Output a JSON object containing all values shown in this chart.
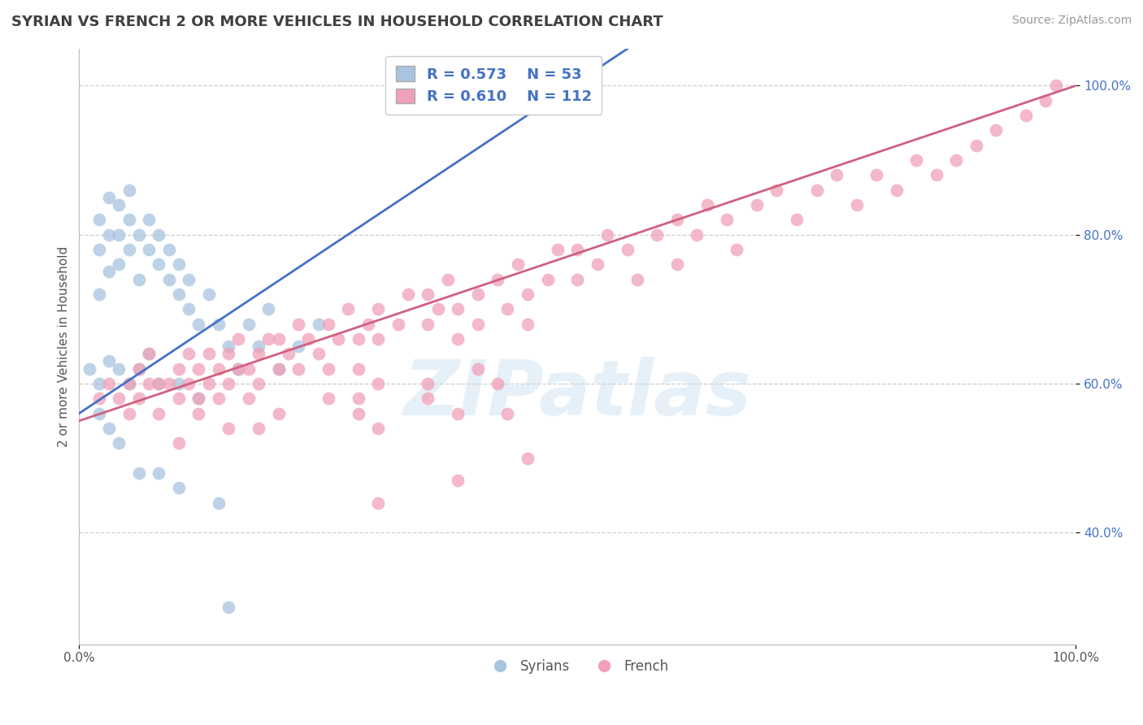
{
  "title": "SYRIAN VS FRENCH 2 OR MORE VEHICLES IN HOUSEHOLD CORRELATION CHART",
  "source": "Source: ZipAtlas.com",
  "ylabel": "2 or more Vehicles in Household",
  "xlim": [
    0.0,
    1.0
  ],
  "ylim": [
    0.25,
    1.05
  ],
  "xtick_positions": [
    0.0,
    1.0
  ],
  "xtick_labels": [
    "0.0%",
    "100.0%"
  ],
  "ytick_positions": [
    0.4,
    0.6,
    0.8,
    1.0
  ],
  "ytick_labels": [
    "40.0%",
    "60.0%",
    "80.0%",
    "100.0%"
  ],
  "grid_color": "#cccccc",
  "background_color": "#ffffff",
  "watermark": "ZIPatlas",
  "legend_R_syrian": "0.573",
  "legend_N_syrian": "53",
  "legend_R_french": "0.610",
  "legend_N_french": "112",
  "syrian_color": "#a8c4e0",
  "french_color": "#f0a0b8",
  "syrian_line_color": "#4472c4",
  "french_line_color": "#d06080",
  "title_color": "#404040",
  "legend_text_color": "#4472c4",
  "syrian_scatter": [
    [
      0.01,
      0.62
    ],
    [
      0.02,
      0.72
    ],
    [
      0.02,
      0.78
    ],
    [
      0.02,
      0.82
    ],
    [
      0.03,
      0.75
    ],
    [
      0.03,
      0.8
    ],
    [
      0.03,
      0.85
    ],
    [
      0.04,
      0.76
    ],
    [
      0.04,
      0.8
    ],
    [
      0.04,
      0.84
    ],
    [
      0.05,
      0.78
    ],
    [
      0.05,
      0.82
    ],
    [
      0.05,
      0.86
    ],
    [
      0.06,
      0.74
    ],
    [
      0.06,
      0.8
    ],
    [
      0.07,
      0.78
    ],
    [
      0.07,
      0.82
    ],
    [
      0.08,
      0.76
    ],
    [
      0.08,
      0.8
    ],
    [
      0.09,
      0.74
    ],
    [
      0.09,
      0.78
    ],
    [
      0.1,
      0.72
    ],
    [
      0.1,
      0.76
    ],
    [
      0.11,
      0.7
    ],
    [
      0.11,
      0.74
    ],
    [
      0.12,
      0.68
    ],
    [
      0.13,
      0.72
    ],
    [
      0.14,
      0.68
    ],
    [
      0.15,
      0.65
    ],
    [
      0.16,
      0.62
    ],
    [
      0.17,
      0.68
    ],
    [
      0.18,
      0.65
    ],
    [
      0.19,
      0.7
    ],
    [
      0.2,
      0.62
    ],
    [
      0.22,
      0.65
    ],
    [
      0.24,
      0.68
    ],
    [
      0.02,
      0.6
    ],
    [
      0.03,
      0.63
    ],
    [
      0.04,
      0.62
    ],
    [
      0.05,
      0.6
    ],
    [
      0.06,
      0.62
    ],
    [
      0.07,
      0.64
    ],
    [
      0.08,
      0.6
    ],
    [
      0.1,
      0.6
    ],
    [
      0.12,
      0.58
    ],
    [
      0.02,
      0.56
    ],
    [
      0.03,
      0.54
    ],
    [
      0.04,
      0.52
    ],
    [
      0.06,
      0.48
    ],
    [
      0.08,
      0.48
    ],
    [
      0.1,
      0.46
    ],
    [
      0.14,
      0.44
    ],
    [
      0.15,
      0.3
    ]
  ],
  "french_scatter": [
    [
      0.02,
      0.58
    ],
    [
      0.03,
      0.6
    ],
    [
      0.04,
      0.58
    ],
    [
      0.05,
      0.6
    ],
    [
      0.05,
      0.56
    ],
    [
      0.06,
      0.58
    ],
    [
      0.06,
      0.62
    ],
    [
      0.07,
      0.6
    ],
    [
      0.07,
      0.64
    ],
    [
      0.08,
      0.6
    ],
    [
      0.08,
      0.56
    ],
    [
      0.09,
      0.6
    ],
    [
      0.1,
      0.62
    ],
    [
      0.1,
      0.58
    ],
    [
      0.11,
      0.6
    ],
    [
      0.11,
      0.64
    ],
    [
      0.12,
      0.62
    ],
    [
      0.12,
      0.58
    ],
    [
      0.13,
      0.6
    ],
    [
      0.13,
      0.64
    ],
    [
      0.14,
      0.62
    ],
    [
      0.14,
      0.58
    ],
    [
      0.15,
      0.64
    ],
    [
      0.15,
      0.6
    ],
    [
      0.16,
      0.62
    ],
    [
      0.16,
      0.66
    ],
    [
      0.17,
      0.62
    ],
    [
      0.17,
      0.58
    ],
    [
      0.18,
      0.64
    ],
    [
      0.18,
      0.6
    ],
    [
      0.19,
      0.66
    ],
    [
      0.2,
      0.62
    ],
    [
      0.2,
      0.66
    ],
    [
      0.21,
      0.64
    ],
    [
      0.22,
      0.68
    ],
    [
      0.22,
      0.62
    ],
    [
      0.23,
      0.66
    ],
    [
      0.24,
      0.64
    ],
    [
      0.25,
      0.68
    ],
    [
      0.25,
      0.62
    ],
    [
      0.26,
      0.66
    ],
    [
      0.27,
      0.7
    ],
    [
      0.28,
      0.66
    ],
    [
      0.28,
      0.62
    ],
    [
      0.29,
      0.68
    ],
    [
      0.3,
      0.66
    ],
    [
      0.3,
      0.7
    ],
    [
      0.32,
      0.68
    ],
    [
      0.33,
      0.72
    ],
    [
      0.35,
      0.68
    ],
    [
      0.35,
      0.72
    ],
    [
      0.36,
      0.7
    ],
    [
      0.37,
      0.74
    ],
    [
      0.38,
      0.7
    ],
    [
      0.38,
      0.66
    ],
    [
      0.4,
      0.72
    ],
    [
      0.4,
      0.68
    ],
    [
      0.42,
      0.74
    ],
    [
      0.43,
      0.7
    ],
    [
      0.44,
      0.76
    ],
    [
      0.45,
      0.72
    ],
    [
      0.45,
      0.68
    ],
    [
      0.47,
      0.74
    ],
    [
      0.48,
      0.78
    ],
    [
      0.5,
      0.74
    ],
    [
      0.5,
      0.78
    ],
    [
      0.52,
      0.76
    ],
    [
      0.53,
      0.8
    ],
    [
      0.55,
      0.78
    ],
    [
      0.56,
      0.74
    ],
    [
      0.58,
      0.8
    ],
    [
      0.6,
      0.76
    ],
    [
      0.6,
      0.82
    ],
    [
      0.62,
      0.8
    ],
    [
      0.63,
      0.84
    ],
    [
      0.65,
      0.82
    ],
    [
      0.66,
      0.78
    ],
    [
      0.68,
      0.84
    ],
    [
      0.7,
      0.86
    ],
    [
      0.72,
      0.82
    ],
    [
      0.74,
      0.86
    ],
    [
      0.76,
      0.88
    ],
    [
      0.78,
      0.84
    ],
    [
      0.8,
      0.88
    ],
    [
      0.82,
      0.86
    ],
    [
      0.84,
      0.9
    ],
    [
      0.86,
      0.88
    ],
    [
      0.88,
      0.9
    ],
    [
      0.9,
      0.92
    ],
    [
      0.92,
      0.94
    ],
    [
      0.95,
      0.96
    ],
    [
      0.97,
      0.98
    ],
    [
      0.98,
      1.0
    ],
    [
      0.1,
      0.52
    ],
    [
      0.12,
      0.56
    ],
    [
      0.15,
      0.54
    ],
    [
      0.18,
      0.54
    ],
    [
      0.2,
      0.56
    ],
    [
      0.25,
      0.58
    ],
    [
      0.28,
      0.56
    ],
    [
      0.3,
      0.6
    ],
    [
      0.3,
      0.54
    ],
    [
      0.35,
      0.6
    ],
    [
      0.38,
      0.56
    ],
    [
      0.35,
      0.58
    ],
    [
      0.28,
      0.58
    ],
    [
      0.4,
      0.62
    ],
    [
      0.42,
      0.6
    ],
    [
      0.43,
      0.56
    ],
    [
      0.45,
      0.5
    ],
    [
      0.3,
      0.44
    ],
    [
      0.38,
      0.47
    ]
  ]
}
